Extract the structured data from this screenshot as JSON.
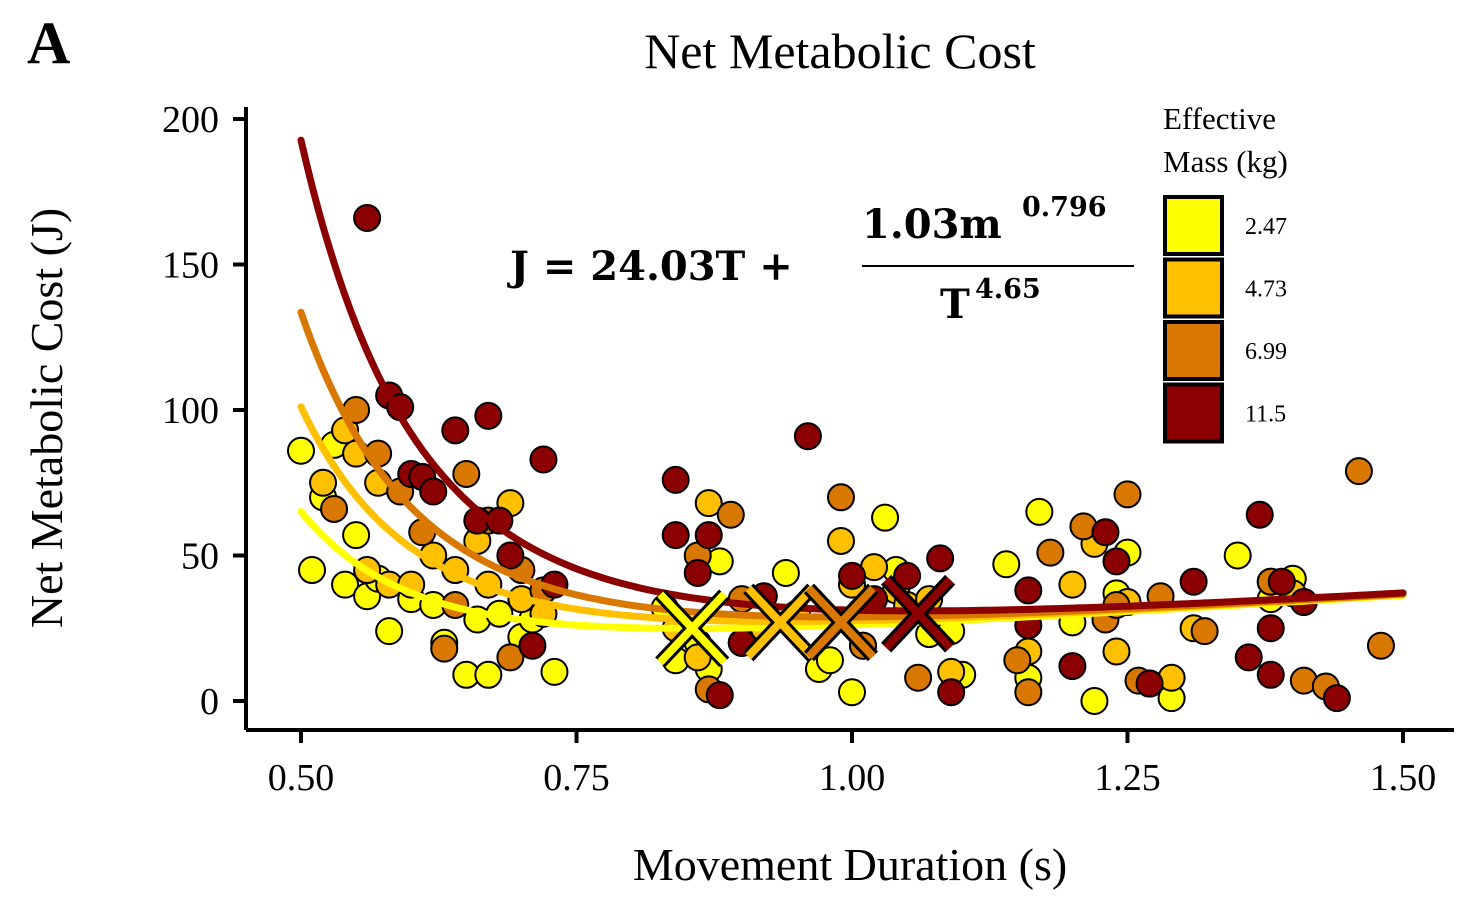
{
  "panel_label": "A",
  "colors": {
    "m2_47": "#FFFF00",
    "m4_73": "#FFC000",
    "m6_99": "#D97800",
    "m11_5": "#8B0000",
    "axis": "#000000"
  },
  "equation": {
    "lhs": "J = 24.03T +",
    "numerator_base": "1.03m",
    "numerator_exp": "0.796",
    "denominator_base": "T",
    "denominator_exp": "4.65"
  },
  "chart_data": {
    "type": "scatter",
    "title": "Net Metabolic Cost",
    "xlabel": "Movement Duration (s)",
    "ylabel": "Net Metabolic Cost (J)",
    "xlim": [
      0.455,
      1.525
    ],
    "ylim": [
      -10,
      205
    ],
    "xticks": [
      0.5,
      0.75,
      1.0,
      1.25,
      1.5
    ],
    "xtick_labels": [
      "0.50",
      "0.75",
      "1.00",
      "1.25",
      "1.50"
    ],
    "yticks": [
      0,
      50,
      100,
      150,
      200
    ],
    "ytick_labels": [
      "0",
      "50",
      "100",
      "150",
      "200"
    ],
    "grid": false,
    "legend": {
      "title_line1": "Effective",
      "title_line2": "Mass (kg)",
      "position": "top-right",
      "entries": [
        {
          "label": "2.47",
          "color_key": "m2_47"
        },
        {
          "label": "4.73",
          "color_key": "m4_73"
        },
        {
          "label": "6.99",
          "color_key": "m6_99"
        },
        {
          "label": "11.5",
          "color_key": "m11_5"
        }
      ]
    },
    "model": {
      "a": 24.03,
      "b": 1.03,
      "c": 0.796,
      "d": 4.65,
      "x_range": [
        0.5,
        1.5
      ]
    },
    "series": [
      {
        "mass": 2.47,
        "color_key": "m2_47",
        "optimum": [
          0.855,
          25
        ],
        "points": [
          [
            0.5,
            86
          ],
          [
            0.51,
            45
          ],
          [
            0.52,
            70
          ],
          [
            0.53,
            88
          ],
          [
            0.54,
            40
          ],
          [
            0.55,
            57
          ],
          [
            0.56,
            36
          ],
          [
            0.57,
            42
          ],
          [
            0.58,
            24
          ],
          [
            0.6,
            35
          ],
          [
            0.62,
            33
          ],
          [
            0.63,
            20
          ],
          [
            0.65,
            9
          ],
          [
            0.66,
            28
          ],
          [
            0.67,
            9
          ],
          [
            0.68,
            30
          ],
          [
            0.7,
            22
          ],
          [
            0.71,
            28
          ],
          [
            0.73,
            10
          ],
          [
            0.83,
            32
          ],
          [
            0.84,
            14
          ],
          [
            0.86,
            20
          ],
          [
            0.87,
            11
          ],
          [
            0.88,
            48
          ],
          [
            0.9,
            20
          ],
          [
            0.94,
            44
          ],
          [
            0.97,
            11
          ],
          [
            0.98,
            14
          ],
          [
            1.0,
            3
          ],
          [
            1.01,
            19
          ],
          [
            1.03,
            63
          ],
          [
            1.04,
            45
          ],
          [
            1.05,
            30
          ],
          [
            1.07,
            23
          ],
          [
            1.09,
            24
          ],
          [
            1.1,
            9
          ],
          [
            1.14,
            47
          ],
          [
            1.16,
            8
          ],
          [
            1.17,
            65
          ],
          [
            1.2,
            27
          ],
          [
            1.22,
            0
          ],
          [
            1.24,
            37
          ],
          [
            1.25,
            51
          ],
          [
            1.29,
            1
          ],
          [
            1.35,
            50
          ],
          [
            1.38,
            35
          ],
          [
            1.4,
            42
          ]
        ]
      },
      {
        "mass": 4.73,
        "color_key": "m4_73",
        "optimum": [
          0.935,
          27
        ],
        "points": [
          [
            0.52,
            75
          ],
          [
            0.54,
            93
          ],
          [
            0.55,
            85
          ],
          [
            0.56,
            45
          ],
          [
            0.57,
            75
          ],
          [
            0.58,
            40
          ],
          [
            0.6,
            40
          ],
          [
            0.62,
            50
          ],
          [
            0.64,
            45
          ],
          [
            0.66,
            55
          ],
          [
            0.67,
            40
          ],
          [
            0.69,
            68
          ],
          [
            0.7,
            35
          ],
          [
            0.72,
            30
          ],
          [
            0.84,
            25
          ],
          [
            0.86,
            15
          ],
          [
            0.87,
            68
          ],
          [
            0.9,
            20
          ],
          [
            0.92,
            25
          ],
          [
            0.95,
            30
          ],
          [
            0.99,
            55
          ],
          [
            1.0,
            40
          ],
          [
            1.02,
            46
          ],
          [
            1.04,
            38
          ],
          [
            1.05,
            33
          ],
          [
            1.07,
            35
          ],
          [
            1.09,
            10
          ],
          [
            1.16,
            17
          ],
          [
            1.2,
            40
          ],
          [
            1.22,
            54
          ],
          [
            1.24,
            17
          ],
          [
            1.25,
            34
          ],
          [
            1.27,
            6
          ],
          [
            1.29,
            8
          ],
          [
            1.31,
            25
          ],
          [
            1.38,
            41
          ],
          [
            1.4,
            37
          ]
        ]
      },
      {
        "mass": 6.99,
        "color_key": "m6_99",
        "optimum": [
          0.99,
          27
        ],
        "points": [
          [
            0.53,
            66
          ],
          [
            0.55,
            100
          ],
          [
            0.57,
            85
          ],
          [
            0.59,
            72
          ],
          [
            0.61,
            58
          ],
          [
            0.63,
            18
          ],
          [
            0.64,
            33
          ],
          [
            0.65,
            78
          ],
          [
            0.67,
            62
          ],
          [
            0.69,
            15
          ],
          [
            0.7,
            45
          ],
          [
            0.72,
            38
          ],
          [
            0.86,
            50
          ],
          [
            0.87,
            4
          ],
          [
            0.89,
            64
          ],
          [
            0.9,
            35
          ],
          [
            0.99,
            70
          ],
          [
            1.01,
            19
          ],
          [
            1.06,
            8
          ],
          [
            1.15,
            14
          ],
          [
            1.16,
            3
          ],
          [
            1.18,
            51
          ],
          [
            1.21,
            60
          ],
          [
            1.23,
            28
          ],
          [
            1.24,
            33
          ],
          [
            1.25,
            71
          ],
          [
            1.26,
            7
          ],
          [
            1.28,
            36
          ],
          [
            1.32,
            24
          ],
          [
            1.38,
            41
          ],
          [
            1.41,
            7
          ],
          [
            1.43,
            5
          ],
          [
            1.46,
            79
          ],
          [
            1.48,
            19
          ]
        ]
      },
      {
        "mass": 11.5,
        "color_key": "m11_5",
        "optimum": [
          1.06,
          30
        ],
        "points": [
          [
            0.56,
            166
          ],
          [
            0.58,
            105
          ],
          [
            0.59,
            101
          ],
          [
            0.6,
            78
          ],
          [
            0.61,
            77
          ],
          [
            0.62,
            72
          ],
          [
            0.64,
            93
          ],
          [
            0.66,
            62
          ],
          [
            0.67,
            98
          ],
          [
            0.68,
            62
          ],
          [
            0.69,
            50
          ],
          [
            0.71,
            19
          ],
          [
            0.72,
            83
          ],
          [
            0.73,
            40
          ],
          [
            0.84,
            76
          ],
          [
            0.84,
            57
          ],
          [
            0.86,
            44
          ],
          [
            0.87,
            57
          ],
          [
            0.88,
            2
          ],
          [
            0.9,
            20
          ],
          [
            0.92,
            36
          ],
          [
            0.96,
            91
          ],
          [
            1.0,
            43
          ],
          [
            1.02,
            35
          ],
          [
            1.05,
            43
          ],
          [
            1.08,
            49
          ],
          [
            1.09,
            3
          ],
          [
            1.16,
            38
          ],
          [
            1.16,
            26
          ],
          [
            1.2,
            12
          ],
          [
            1.23,
            58
          ],
          [
            1.24,
            48
          ],
          [
            1.27,
            6
          ],
          [
            1.31,
            41
          ],
          [
            1.36,
            15
          ],
          [
            1.37,
            64
          ],
          [
            1.38,
            9
          ],
          [
            1.38,
            25
          ],
          [
            1.39,
            41
          ],
          [
            1.41,
            34
          ],
          [
            1.44,
            1
          ]
        ]
      }
    ]
  }
}
